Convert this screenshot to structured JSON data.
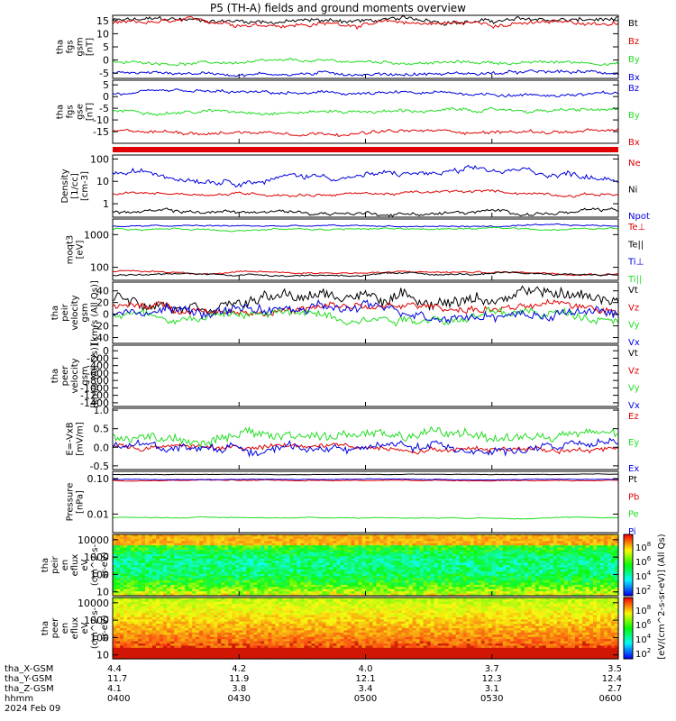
{
  "title": "P5 (TH-A) fields and ground moments overview",
  "colors": {
    "black": "#000000",
    "red": "#e00000",
    "green": "#22dd22",
    "blue": "#0000e0"
  },
  "chart_data": [
    {
      "type": "line",
      "ylabel": [
        "tha",
        "fgs",
        "gsm",
        "[nT]"
      ],
      "ylim": [
        -7,
        17
      ],
      "yticks": [
        15,
        10,
        5,
        0,
        -5
      ],
      "series": [
        {
          "name": "Bt",
          "color": "black",
          "level": 15,
          "noise": 1.2
        },
        {
          "name": "Bz",
          "color": "red",
          "level": 14,
          "noise": 1.2
        },
        {
          "name": "By",
          "color": "green",
          "level": -1,
          "noise": 0.8
        },
        {
          "name": "Bx",
          "color": "blue",
          "level": -5,
          "noise": 0.9
        }
      ]
    },
    {
      "type": "line",
      "ylabel": [
        "tha",
        "fgs",
        "gse",
        "[nT]"
      ],
      "ylim": [
        -20,
        7
      ],
      "yticks": [
        5,
        0,
        -5,
        -10,
        -15
      ],
      "series": [
        {
          "name": "Bz",
          "color": "blue",
          "level": 1,
          "noise": 1
        },
        {
          "name": "By",
          "color": "green",
          "level": -6,
          "noise": 1
        },
        {
          "name": "Bx",
          "color": "red",
          "level": -15,
          "noise": 1
        }
      ]
    },
    {
      "type": "line",
      "log": true,
      "ylabel": [
        "Density",
        "[1/cc]",
        "[cm-3]"
      ],
      "ylim": [
        0.25,
        150
      ],
      "yticks": [
        100,
        10,
        1
      ],
      "yticklabels": [
        "100",
        "10",
        "1"
      ],
      "series": [
        {
          "name": "Ne",
          "color": "red",
          "level": 3,
          "noise": 0.12
        },
        {
          "name": "Ni",
          "color": "black",
          "level": 0.4,
          "noise": 0.15
        },
        {
          "name": "Npot",
          "color": "blue",
          "level": 20,
          "noise": 0.25
        }
      ]
    },
    {
      "type": "line",
      "log": true,
      "ylabel": [
        "moqt3",
        "[eV]"
      ],
      "ylim": [
        40,
        3000
      ],
      "yticks": [
        1000,
        100
      ],
      "yticklabels": [
        "1000",
        "100"
      ],
      "series": [
        {
          "name": "Te⊥",
          "color": "red",
          "level": 70,
          "noise": 0.05
        },
        {
          "name": "Te||",
          "color": "black",
          "level": 60,
          "noise": 0.05
        },
        {
          "name": "Ti⊥",
          "color": "blue",
          "level": 1800,
          "noise": 0.04
        },
        {
          "name": "Ti||",
          "color": "green",
          "level": 1500,
          "noise": 0.05
        }
      ]
    },
    {
      "type": "line",
      "ylabel": [
        "tha",
        "peir",
        "velocity",
        "gsm",
        "[km/s (All Qs)]"
      ],
      "ylim": [
        -50,
        55
      ],
      "yticks": [
        40,
        20,
        0,
        -20,
        -40
      ],
      "series": [
        {
          "name": "Vt",
          "color": "black",
          "level": 30,
          "noise": 14
        },
        {
          "name": "Vz",
          "color": "red",
          "level": 10,
          "noise": 9
        },
        {
          "name": "Vy",
          "color": "green",
          "level": 0,
          "noise": 11
        },
        {
          "name": "Vx",
          "color": "blue",
          "level": 5,
          "noise": 12
        }
      ]
    },
    {
      "type": "line",
      "ylabel": [
        "tha",
        "peer",
        "velocity",
        "gsm",
        "[km/s (All Qs)]"
      ],
      "ylim": [
        -1500,
        150
      ],
      "yticks": [
        0,
        -200,
        -400,
        -600,
        -800,
        -1000,
        -1200,
        -1400
      ],
      "empty": true,
      "series": [
        {
          "name": "Vt",
          "color": "black"
        },
        {
          "name": "Vz",
          "color": "red"
        },
        {
          "name": "Vy",
          "color": "green"
        },
        {
          "name": "Vx",
          "color": "blue"
        }
      ]
    },
    {
      "type": "line",
      "ylabel": [
        "E=-VxB",
        "[mV/m]"
      ],
      "ylim": [
        -0.6,
        1.05
      ],
      "yticks": [
        1.0,
        0.5,
        0.0,
        -0.5
      ],
      "yticklabels": [
        "1.0",
        "0.5",
        "0.0",
        "-0.5"
      ],
      "series": [
        {
          "name": "Ez",
          "color": "red",
          "level": 0,
          "noise": 0.1
        },
        {
          "name": "Ey",
          "color": "green",
          "level": 0.3,
          "noise": 0.2
        },
        {
          "name": "Ex",
          "color": "blue",
          "level": 0,
          "noise": 0.15
        }
      ]
    },
    {
      "type": "line",
      "log": true,
      "ylabel": [
        "Pressure",
        "[nPa]"
      ],
      "ylim": [
        0.003,
        0.16
      ],
      "yticks": [
        0.1,
        0.01
      ],
      "yticklabels": [
        "0.10",
        "0.01"
      ],
      "series": [
        {
          "name": "Pt",
          "color": "black",
          "level": 0.13,
          "noise": 0.01
        },
        {
          "name": "Pb",
          "color": "red",
          "level": 0.09,
          "noise": 0.02
        },
        {
          "name": "Pe",
          "color": "green",
          "level": 0.008,
          "noise": 0.02
        },
        {
          "name": "Pi",
          "color": "blue",
          "level": 0.095,
          "noise": 0.015
        }
      ]
    },
    {
      "type": "heatmap",
      "log": true,
      "ylabel": [
        "tha",
        "peir",
        "en",
        "eflux",
        "eV",
        "(cm^2-s-",
        "sr-eV)"
      ],
      "ylim": [
        6,
        20000
      ],
      "yticks": [
        10000,
        1000,
        100,
        10
      ],
      "yticklabels": [
        "10000",
        "1000",
        "100",
        "10"
      ]
    },
    {
      "type": "heatmap",
      "log": true,
      "ylabel": [
        "tha",
        "peer",
        "en",
        "eflux",
        "eV",
        "(cm^2-s-",
        "sr-eV)"
      ],
      "ylim": [
        6,
        20000
      ],
      "yticks": [
        10000,
        1000,
        100,
        10
      ],
      "yticklabels": [
        "10000",
        "1000",
        "100",
        "10"
      ]
    }
  ],
  "colorbar": {
    "label": "[eV/(cm^2-s-sr-eV)] (All Qs)",
    "ticks": [
      "10^8",
      "10^6",
      "10^4",
      "10^2"
    ],
    "lower_ticks": [
      "10^8",
      "10^6",
      "10^4",
      "10^2"
    ]
  },
  "x_axis": {
    "row_labels": [
      "tha_X-GSM",
      "tha_Y-GSM",
      "tha_Z-GSM",
      "hhmm",
      "2024 Feb 09"
    ],
    "ticks": [
      {
        "values": [
          "4.4",
          "11.7",
          "4.1",
          "0400"
        ]
      },
      {
        "values": [
          "4.2",
          "11.9",
          "3.8",
          "0430"
        ]
      },
      {
        "values": [
          "4.0",
          "12.1",
          "3.4",
          "0500"
        ]
      },
      {
        "values": [
          "3.7",
          "12.3",
          "3.1",
          "0530"
        ]
      },
      {
        "values": [
          "3.5",
          "12.4",
          "2.7",
          "0600"
        ]
      }
    ]
  }
}
